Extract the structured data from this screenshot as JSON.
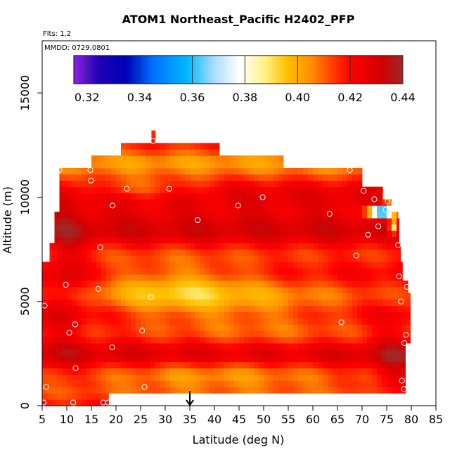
{
  "chart_data": {
    "type": "heatmap",
    "title": "ATOM1 Northeast_Pacific H2402_PFP",
    "xlabel": "Latitude (deg N)",
    "ylabel": "Altitude (m)",
    "xlim": [
      5,
      85
    ],
    "ylim": [
      0,
      17500
    ],
    "x_ticks": [
      5,
      10,
      15,
      20,
      25,
      30,
      35,
      40,
      45,
      50,
      55,
      60,
      65,
      70,
      75,
      80,
      85
    ],
    "y_ticks": [
      0,
      5000,
      10000,
      15000
    ],
    "annotations": {
      "flights": "Flts: 1,2",
      "dates": "MMDD: 0729,0801"
    },
    "colorbar": {
      "min": 0.315,
      "max": 0.44,
      "ticks": [
        0.32,
        0.34,
        0.36,
        0.38,
        0.4,
        0.42,
        0.44
      ],
      "tick_labels": [
        "0.32",
        "0.34",
        "0.36",
        "0.38",
        "0.40",
        "0.42",
        "0.44"
      ],
      "stops": [
        {
          "v": 0.315,
          "c": "#8f20e8"
        },
        {
          "v": 0.325,
          "c": "#1a00b4"
        },
        {
          "v": 0.335,
          "c": "#0000b8"
        },
        {
          "v": 0.345,
          "c": "#0070ff"
        },
        {
          "v": 0.358,
          "c": "#00b8ff"
        },
        {
          "v": 0.368,
          "c": "#a8dcff"
        },
        {
          "v": 0.378,
          "c": "#ffffff"
        },
        {
          "v": 0.388,
          "c": "#fff080"
        },
        {
          "v": 0.396,
          "c": "#ffc000"
        },
        {
          "v": 0.405,
          "c": "#ff9000"
        },
        {
          "v": 0.413,
          "c": "#ff4000"
        },
        {
          "v": 0.42,
          "c": "#ff0000"
        },
        {
          "v": 0.432,
          "c": "#d00000"
        },
        {
          "v": 0.44,
          "c": "#a02828"
        }
      ]
    },
    "arrow_marker": {
      "latitude": 35,
      "altitude": 700
    },
    "sample_points": [
      {
        "lat": 5.5,
        "alt": 4800
      },
      {
        "lat": 5.8,
        "alt": 900
      },
      {
        "lat": 5.3,
        "alt": 150
      },
      {
        "lat": 8.5,
        "alt": 11300
      },
      {
        "lat": 9.8,
        "alt": 5800
      },
      {
        "lat": 10.5,
        "alt": 3500
      },
      {
        "lat": 11.3,
        "alt": 150
      },
      {
        "lat": 11.7,
        "alt": 3900
      },
      {
        "lat": 11.8,
        "alt": 1800
      },
      {
        "lat": 14.8,
        "alt": 11300
      },
      {
        "lat": 14.9,
        "alt": 10800
      },
      {
        "lat": 16.4,
        "alt": 5600
      },
      {
        "lat": 16.8,
        "alt": 7600
      },
      {
        "lat": 17.4,
        "alt": 150
      },
      {
        "lat": 18.4,
        "alt": 150
      },
      {
        "lat": 19.2,
        "alt": 2800
      },
      {
        "lat": 19.3,
        "alt": 9600
      },
      {
        "lat": 22.2,
        "alt": 10400
      },
      {
        "lat": 25.3,
        "alt": 3600
      },
      {
        "lat": 25.8,
        "alt": 900
      },
      {
        "lat": 27.1,
        "alt": 5200
      },
      {
        "lat": 27.5,
        "alt": 12700
      },
      {
        "lat": 30.8,
        "alt": 10400
      },
      {
        "lat": 36.6,
        "alt": 8900
      },
      {
        "lat": 44.8,
        "alt": 9600
      },
      {
        "lat": 49.8,
        "alt": 10000
      },
      {
        "lat": 63.4,
        "alt": 9200
      },
      {
        "lat": 65.8,
        "alt": 4000
      },
      {
        "lat": 67.5,
        "alt": 11300
      },
      {
        "lat": 68.8,
        "alt": 7200
      },
      {
        "lat": 70.3,
        "alt": 10300
      },
      {
        "lat": 71.2,
        "alt": 8200
      },
      {
        "lat": 72.5,
        "alt": 9900
      },
      {
        "lat": 73.3,
        "alt": 8600
      },
      {
        "lat": 74.8,
        "alt": 9400
      },
      {
        "lat": 75.2,
        "alt": 9800
      },
      {
        "lat": 76.5,
        "alt": 9700
      },
      {
        "lat": 77.3,
        "alt": 7700
      },
      {
        "lat": 77.5,
        "alt": 6200
      },
      {
        "lat": 77.9,
        "alt": 5000
      },
      {
        "lat": 78.1,
        "alt": 1200
      },
      {
        "lat": 78.5,
        "alt": 800
      },
      {
        "lat": 78.6,
        "alt": 3000
      },
      {
        "lat": 78.9,
        "alt": 3400
      },
      {
        "lat": 79.1,
        "alt": 5700
      }
    ]
  },
  "colors": {
    "background": "#ffffff",
    "axis": "#000000",
    "points": "#ffffff"
  }
}
